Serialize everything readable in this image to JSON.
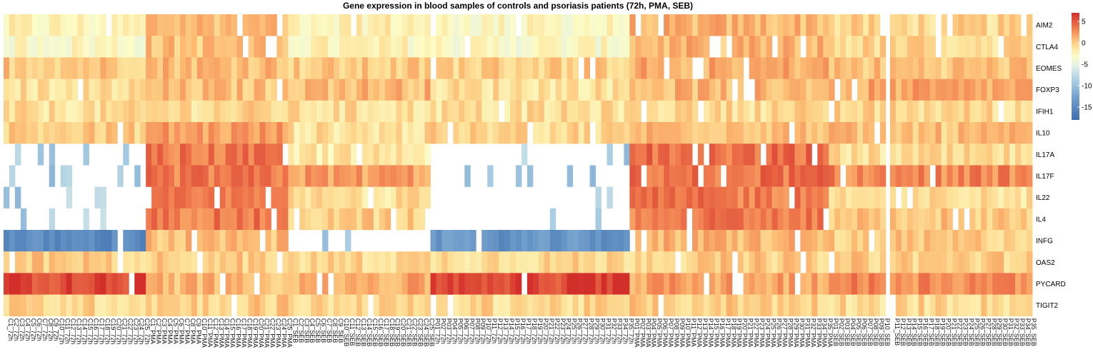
{
  "chart_data": {
    "type": "heatmap",
    "title": "Gene expression in blood samples of controls and psoriasis patients (72h, PMA, SEB)",
    "rows": [
      "AIM2",
      "CTLA4",
      "EOMES",
      "FOXP3",
      "IFIH1",
      "IL10",
      "IL17A",
      "IL17F",
      "IL22",
      "IL4",
      "INFG",
      "OAS2",
      "PYCARD",
      "TIGIT2"
    ],
    "column_groups": [
      {
        "prefix": "C",
        "count": 25,
        "condition": "72h"
      },
      {
        "prefix": "C",
        "count": 25,
        "condition": "PMA"
      },
      {
        "prefix": "C",
        "count": 25,
        "condition": "SEB"
      },
      {
        "prefix": "P",
        "count": 35,
        "condition": "72h"
      },
      {
        "prefix": "P",
        "count": 35,
        "condition": "PMA"
      },
      {
        "prefix": "P",
        "count": 35,
        "condition": "SEB"
      }
    ],
    "column_gap_after": 155,
    "color_scale": {
      "min": -18,
      "max": 7,
      "ticks": [
        5,
        0,
        -5,
        -10,
        -15
      ],
      "colors": [
        {
          "v": -18,
          "c": "#3f6fae"
        },
        {
          "v": -13,
          "c": "#6f9ccb"
        },
        {
          "v": -9,
          "c": "#a8cde3"
        },
        {
          "v": -5.5,
          "c": "#e1f0e8"
        },
        {
          "v": -3,
          "c": "#fcfcc6"
        },
        {
          "v": -1,
          "c": "#fde29a"
        },
        {
          "v": 1,
          "c": "#fcb971"
        },
        {
          "v": 3.5,
          "c": "#f07b4e"
        },
        {
          "v": 7,
          "c": "#d32f2a"
        }
      ]
    },
    "row_profiles": {
      "AIM2": {
        "C72h": -2.5,
        "CPMA": 1.0,
        "CSEB": -2.0,
        "P72h": -2.8,
        "PPMA": 1.0,
        "PSEB": -0.5
      },
      "CTLA4": {
        "C72h": -2.8,
        "CPMA": 0.5,
        "CSEB": -2.5,
        "P72h": -3.0,
        "PPMA": 1.0,
        "PSEB": -0.5
      },
      "EOMES": {
        "C72h": 0.5,
        "CPMA": 1.0,
        "CSEB": 0.0,
        "P72h": 0.0,
        "PPMA": 1.5,
        "PSEB": 0.5
      },
      "FOXP3": {
        "C72h": -1.0,
        "CPMA": 0.5,
        "CSEB": 1.0,
        "P72h": -1.0,
        "PPMA": 1.0,
        "PSEB": 1.5
      },
      "IFIH1": {
        "C72h": -1.0,
        "CPMA": -0.5,
        "CSEB": -1.0,
        "P72h": -1.0,
        "PPMA": -0.5,
        "PSEB": -0.5
      },
      "IL10": {
        "C72h": 0.0,
        "CPMA": 2.0,
        "CSEB": -1.0,
        "P72h": -0.5,
        "PPMA": 1.0,
        "PSEB": 0.5
      },
      "IL17A": {
        "C72h": null,
        "CPMA": 3.5,
        "CSEB": -1.5,
        "P72h": null,
        "PPMA": 4.0,
        "PSEB": -1.0
      },
      "IL17F": {
        "C72h": null,
        "CPMA": 3.5,
        "CSEB": 2.0,
        "P72h": null,
        "PPMA": 4.0,
        "PSEB": 3.0
      },
      "IL22": {
        "C72h": null,
        "CPMA": 3.0,
        "CSEB": -1.0,
        "P72h": null,
        "PPMA": 3.5,
        "PSEB": -1.0
      },
      "IL4": {
        "C72h": null,
        "CPMA": 3.5,
        "CSEB": 0.0,
        "P72h": null,
        "PPMA": 3.5,
        "PSEB": 0.5
      },
      "INFG": {
        "C72h": -15.0,
        "CPMA": 0.5,
        "CSEB": null,
        "P72h": -14.0,
        "PPMA": 1.0,
        "PSEB": 0.0
      },
      "OAS2": {
        "C72h": 0.0,
        "CPMA": 0.0,
        "CSEB": -0.5,
        "P72h": -0.5,
        "PPMA": 0.0,
        "PSEB": 0.0
      },
      "PYCARD": {
        "C72h": 6.0,
        "CPMA": 1.0,
        "CSEB": 1.5,
        "P72h": 6.0,
        "PPMA": 2.0,
        "PSEB": 3.0
      },
      "TIGIT2": {
        "C72h": -0.5,
        "CPMA": 0.0,
        "CSEB": -0.5,
        "P72h": -0.5,
        "PPMA": 0.0,
        "PSEB": -0.5
      }
    },
    "legend_position": "right"
  }
}
